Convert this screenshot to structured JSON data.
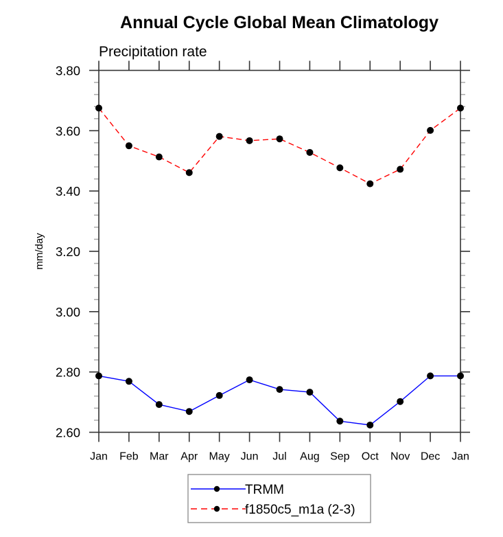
{
  "chart_data": {
    "type": "line",
    "title": "Annual Cycle Global Mean Climatology",
    "subtitle": "Precipitation rate",
    "xlabel": "",
    "ylabel": "mm/day",
    "categories": [
      "Jan",
      "Feb",
      "Mar",
      "Apr",
      "May",
      "Jun",
      "Jul",
      "Aug",
      "Sep",
      "Oct",
      "Nov",
      "Dec",
      "Jan"
    ],
    "ylim": [
      2.6,
      3.8
    ],
    "yticks": [
      2.6,
      2.8,
      3.0,
      3.2,
      3.4,
      3.6,
      3.8
    ],
    "ytick_labels": [
      "2.60",
      "2.80",
      "3.00",
      "3.20",
      "3.40",
      "3.60",
      "3.80"
    ],
    "yminor_step": 0.04,
    "grid": false,
    "legend_position": "bottom-center",
    "series": [
      {
        "name": "TRMM",
        "color": "#0000ff",
        "line_style": "solid",
        "marker": "filled-circle",
        "marker_color": "#000000",
        "values": [
          2.787,
          2.769,
          2.692,
          2.669,
          2.722,
          2.774,
          2.742,
          2.733,
          2.637,
          2.624,
          2.702,
          2.787,
          2.787
        ]
      },
      {
        "name": "f1850c5_m1a (2-3)",
        "color": "#ff0000",
        "line_style": "dashed",
        "marker": "filled-circle",
        "marker_color": "#000000",
        "values": [
          3.675,
          3.55,
          3.513,
          3.461,
          3.581,
          3.567,
          3.573,
          3.528,
          3.477,
          3.424,
          3.472,
          3.601,
          3.675
        ]
      }
    ]
  }
}
